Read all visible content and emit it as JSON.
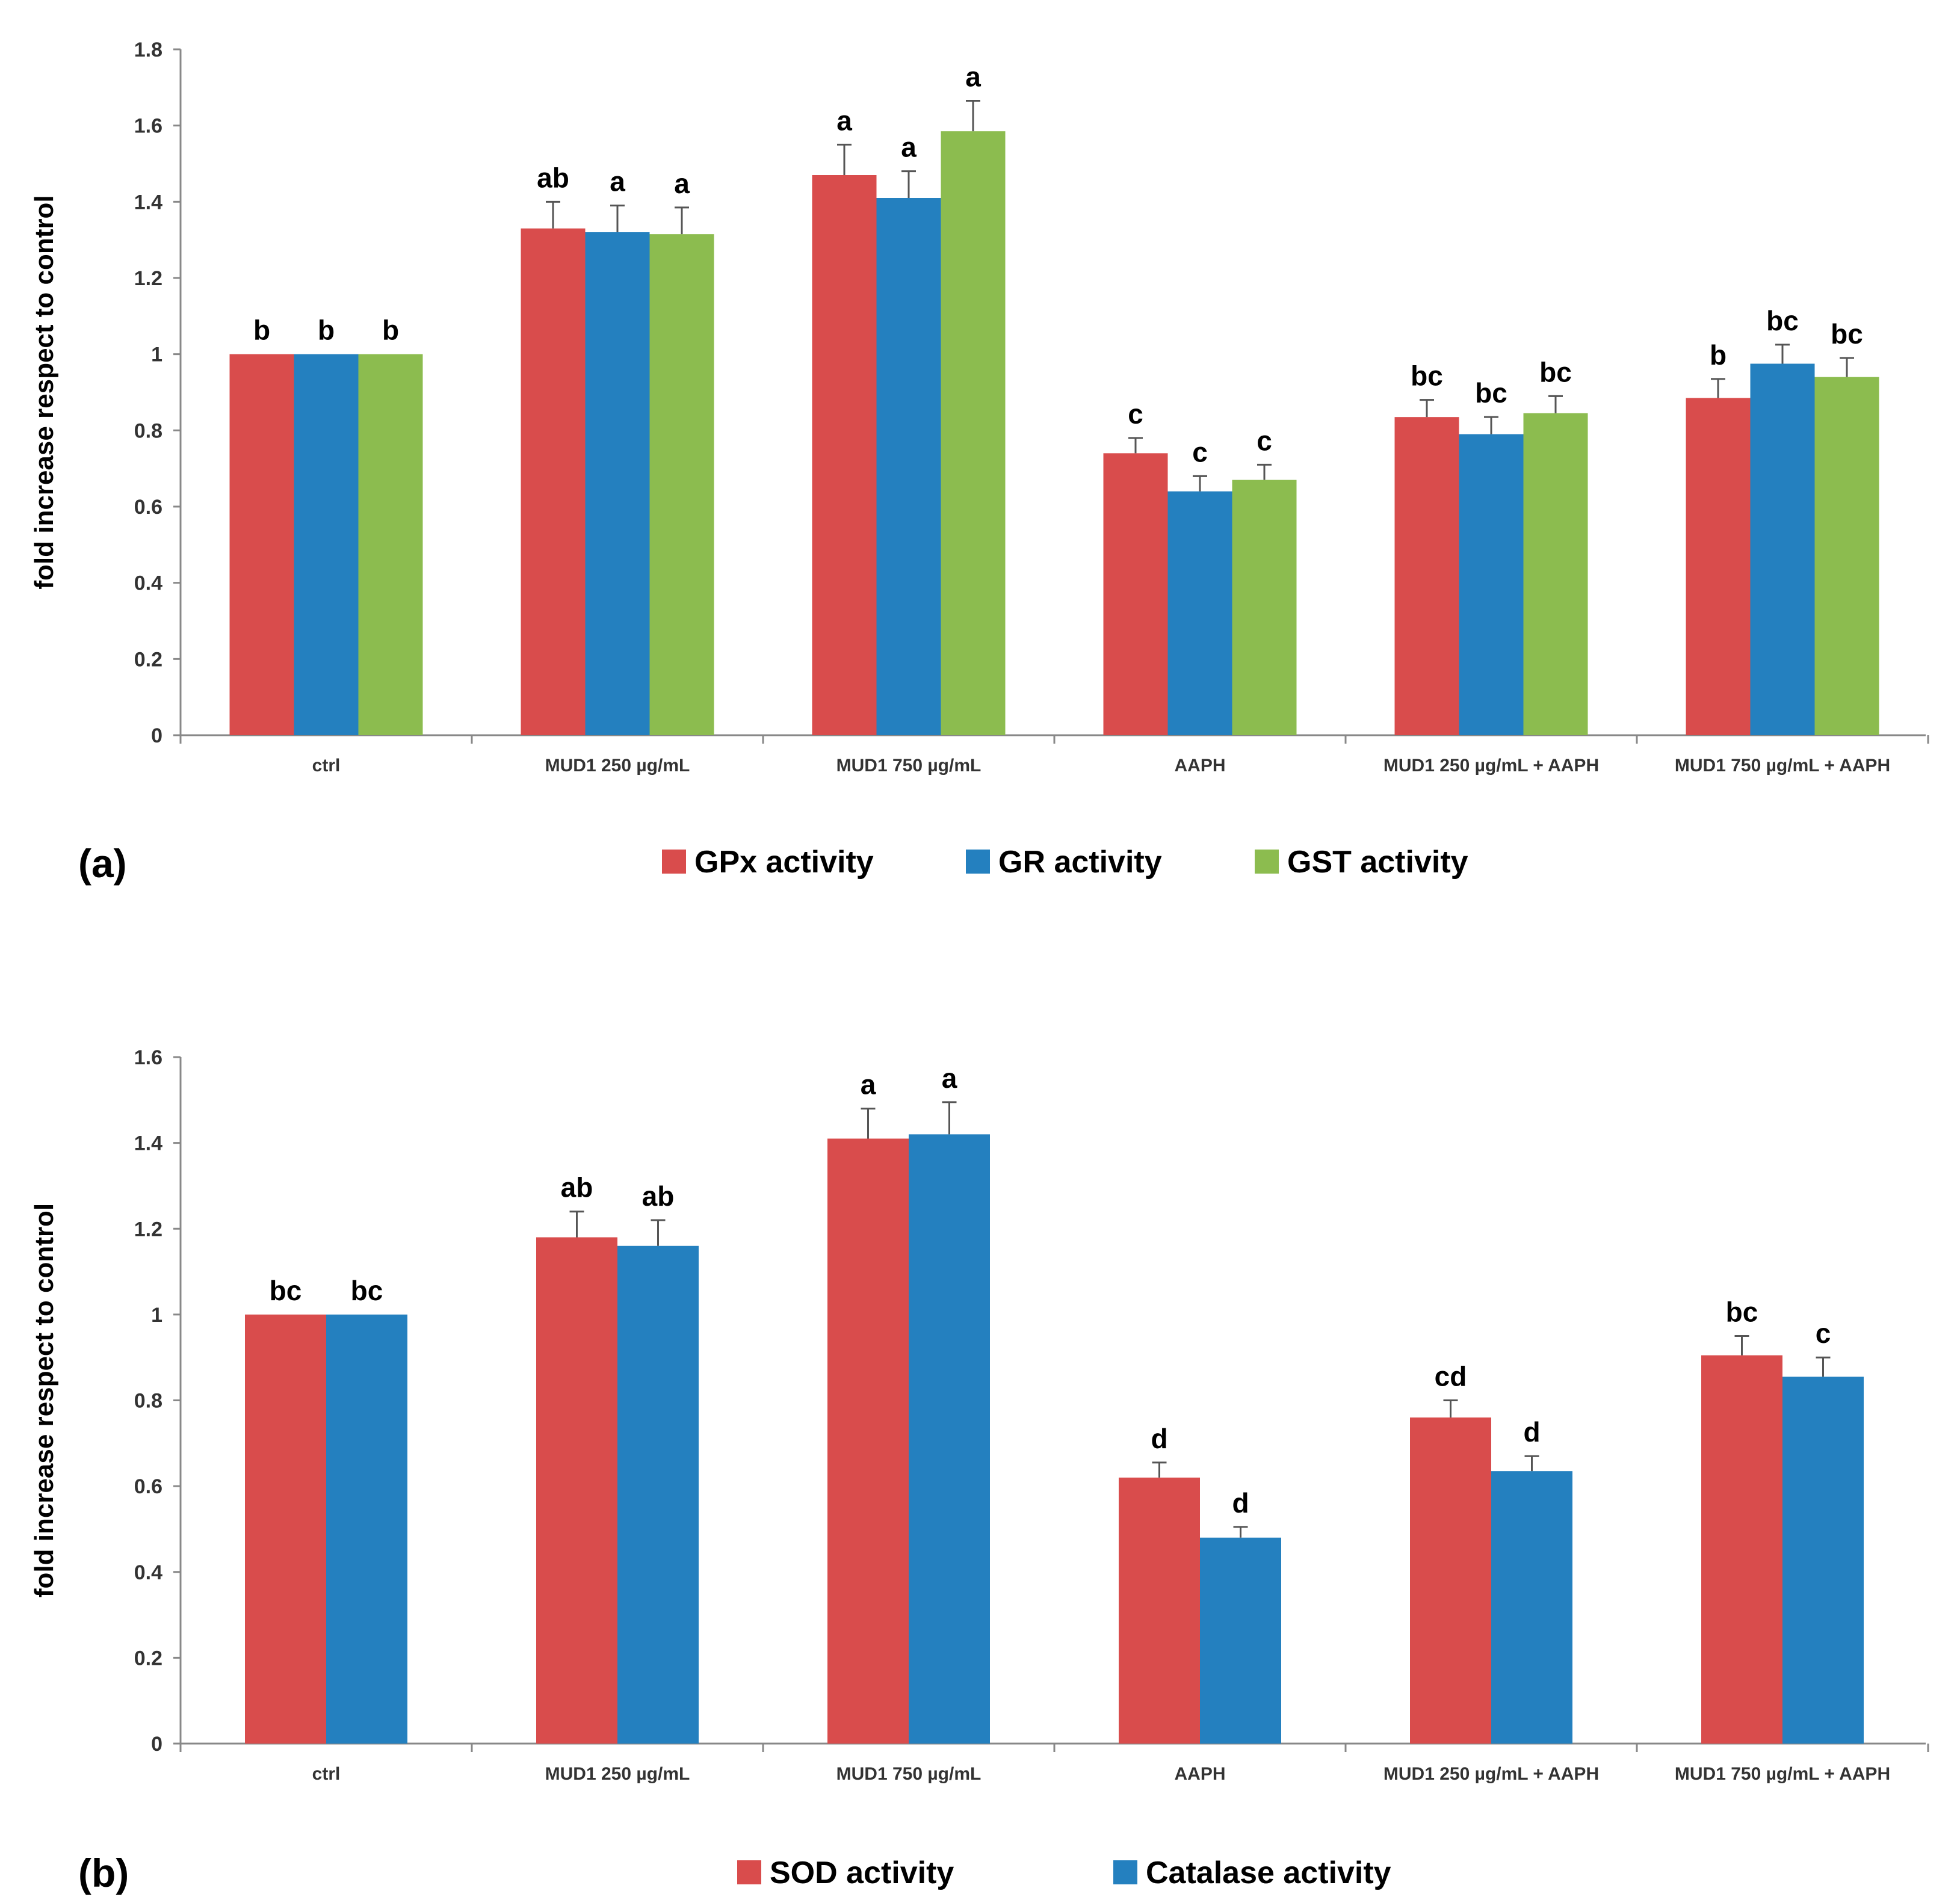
{
  "chart_data": [
    {
      "panel_label": "(a)",
      "type": "bar",
      "ylabel": "fold increase respect to control",
      "ylim": [
        0,
        1.8
      ],
      "yticks": [
        0,
        0.2,
        0.4,
        0.6,
        0.8,
        1,
        1.2,
        1.4,
        1.6,
        1.8
      ],
      "ytick_labels": [
        "0",
        "0.2",
        "0.4",
        "0.6",
        "0.8",
        "1",
        "1.2",
        "1.4",
        "1.6",
        "1.8"
      ],
      "categories": [
        "ctrl",
        "MUD1 250 µg/mL",
        "MUD1 750 µg/mL",
        "AAPH",
        "MUD1 250 µg/mL + AAPH",
        "MUD1 750 µg/mL + AAPH"
      ],
      "legend_position": "bottom",
      "grid": false,
      "series": [
        {
          "name": "GPx activity",
          "color": "#d94c4c",
          "values": [
            1.0,
            1.33,
            1.47,
            0.74,
            0.835,
            0.885
          ],
          "errors": [
            0.0,
            0.07,
            0.08,
            0.04,
            0.045,
            0.05
          ],
          "sig": [
            "b",
            "ab",
            "a",
            "c",
            "bc",
            "b"
          ]
        },
        {
          "name": "GR activity",
          "color": "#2480bf",
          "values": [
            1.0,
            1.32,
            1.41,
            0.64,
            0.79,
            0.975
          ],
          "errors": [
            0.0,
            0.07,
            0.07,
            0.04,
            0.045,
            0.05
          ],
          "sig": [
            "b",
            "a",
            "a",
            "c",
            "bc",
            "bc"
          ]
        },
        {
          "name": "GST activity",
          "color": "#8cbc4f",
          "values": [
            1.0,
            1.315,
            1.585,
            0.67,
            0.845,
            0.94
          ],
          "errors": [
            0.0,
            0.07,
            0.08,
            0.04,
            0.045,
            0.05
          ],
          "sig": [
            "b",
            "a",
            "a",
            "c",
            "bc",
            "bc"
          ]
        }
      ]
    },
    {
      "panel_label": "(b)",
      "type": "bar",
      "ylabel": "fold increase respect to control",
      "ylim": [
        0,
        1.6
      ],
      "yticks": [
        0,
        0.2,
        0.4,
        0.6,
        0.8,
        1,
        1.2,
        1.4,
        1.6
      ],
      "ytick_labels": [
        "0",
        "0.2",
        "0.4",
        "0.6",
        "0.8",
        "1",
        "1.2",
        "1.4",
        "1.6"
      ],
      "categories": [
        "ctrl",
        "MUD1 250 µg/mL",
        "MUD1 750 µg/mL",
        "AAPH",
        "MUD1 250 µg/mL + AAPH",
        "MUD1 750 µg/mL + AAPH"
      ],
      "legend_position": "bottom",
      "grid": false,
      "series": [
        {
          "name": "SOD activity",
          "color": "#d94c4c",
          "values": [
            1.0,
            1.18,
            1.41,
            0.62,
            0.76,
            0.905
          ],
          "errors": [
            0.0,
            0.06,
            0.07,
            0.035,
            0.04,
            0.045
          ],
          "sig": [
            "bc",
            "ab",
            "a",
            "d",
            "cd",
            "bc"
          ]
        },
        {
          "name": "Catalase activity",
          "color": "#2480bf",
          "values": [
            1.0,
            1.16,
            1.42,
            0.48,
            0.635,
            0.855
          ],
          "errors": [
            0.0,
            0.06,
            0.075,
            0.025,
            0.035,
            0.045
          ],
          "sig": [
            "bc",
            "ab",
            "a",
            "d",
            "d",
            "c"
          ]
        }
      ]
    }
  ]
}
